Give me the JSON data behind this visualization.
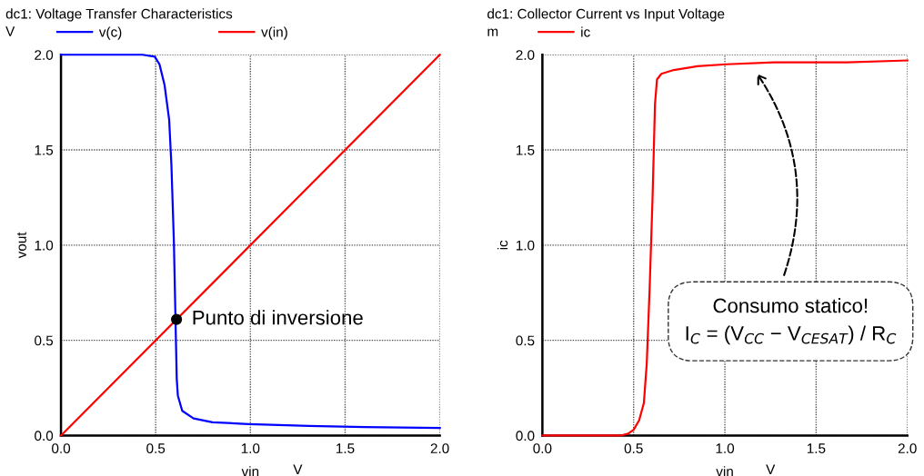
{
  "chart_data": [
    {
      "type": "line",
      "title": "dc1: Voltage Transfer Characteristics",
      "xlabel": "vin",
      "ylabel": "vout",
      "xlim": [
        0,
        2
      ],
      "ylim": [
        0,
        2
      ],
      "xticks": [
        {
          "value": 0,
          "label": "0.0"
        },
        {
          "value": 0.5,
          "label": "0.5"
        },
        {
          "value": 1,
          "label": "1.0"
        },
        {
          "value": 1.5,
          "label": "1.5"
        },
        {
          "value": 2,
          "label": "2.0"
        }
      ],
      "yticks": [
        {
          "value": 0,
          "label": "0.0"
        },
        {
          "value": 0.5,
          "label": "0.5"
        },
        {
          "value": 1,
          "label": "1.0"
        },
        {
          "value": 1.5,
          "label": "1.5"
        },
        {
          "value": 2,
          "label": "2.0"
        }
      ],
      "grid": true,
      "legend": "top",
      "series": [
        {
          "name": "v(c)",
          "color": "#0000ff",
          "x": [
            0,
            0.43,
            0.495,
            0.52,
            0.547,
            0.571,
            0.583,
            0.596,
            0.611,
            0.617,
            0.64,
            0.7,
            0.8,
            0.99,
            1.31,
            1.6,
            2.0
          ],
          "values": [
            2.0,
            2.0,
            1.99,
            1.95,
            1.84,
            1.66,
            1.42,
            1.02,
            0.3,
            0.21,
            0.13,
            0.09,
            0.07,
            0.06,
            0.05,
            0.045,
            0.04
          ]
        },
        {
          "name": "v(in)",
          "color": "#ff0000",
          "x": [
            0,
            2
          ],
          "values": [
            0,
            2
          ]
        },
        {
          "type": "scatter",
          "color": "#000000",
          "x": [
            0.61
          ],
          "values": [
            0.61
          ]
        }
      ],
      "annotations": [
        "V",
        "V",
        {
          "text": "Punto di inversione",
          "x": 0.61,
          "y": 0.61
        }
      ]
    },
    {
      "type": "line",
      "title": "dc1: Collector Current vs Input Voltage",
      "xlabel": "vin",
      "ylabel": "ic",
      "xlim": [
        0,
        2
      ],
      "ylim": [
        0,
        2
      ],
      "xticks": [
        {
          "value": 0,
          "label": "0.0"
        },
        {
          "value": 0.5,
          "label": "0.5"
        },
        {
          "value": 1,
          "label": "1.0"
        },
        {
          "value": 1.5,
          "label": "1.5"
        },
        {
          "value": 2,
          "label": "2.0"
        }
      ],
      "yticks": [
        {
          "value": 0,
          "label": "0.0"
        },
        {
          "value": 0.5,
          "label": "0.5"
        },
        {
          "value": 1,
          "label": "1.0"
        },
        {
          "value": 1.5,
          "label": "1.5"
        },
        {
          "value": 2,
          "label": "2.0"
        }
      ],
      "grid": true,
      "legend": "top",
      "series": [
        {
          "name": "ic",
          "color": "#ff0000",
          "x": [
            0,
            0.43,
            0.47,
            0.5,
            0.53,
            0.556,
            0.572,
            0.588,
            0.604,
            0.617,
            0.628,
            0.652,
            0.72,
            0.85,
            1.01,
            1.27,
            1.67,
            2.0
          ],
          "values": [
            0,
            0,
            0.01,
            0.03,
            0.08,
            0.17,
            0.38,
            0.78,
            1.26,
            1.74,
            1.87,
            1.9,
            1.92,
            1.94,
            1.95,
            1.96,
            1.96,
            1.97
          ]
        }
      ],
      "annotations": [
        "m",
        "V",
        "Consumo statico!",
        "I$_{C}$ = (V$_{CC}$ − V$_{CESAT}$) / R$_{C}$"
      ]
    }
  ]
}
